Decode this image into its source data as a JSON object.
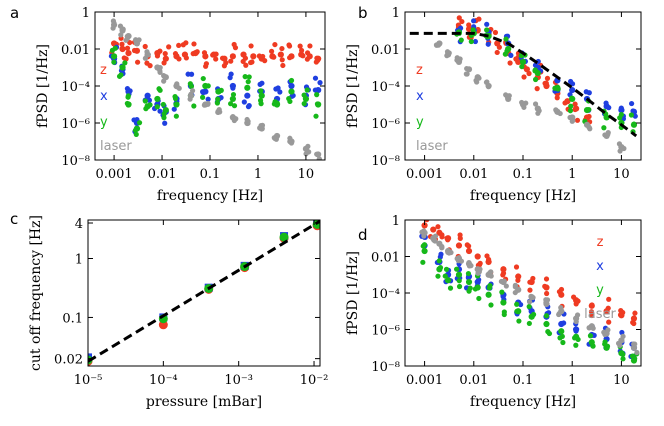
{
  "colors": {
    "z": "#ef3b22",
    "x": "#1f3fe0",
    "y": "#16b81a",
    "laser": "#999999",
    "fit": "#000000"
  },
  "chart_data": [
    {
      "id": "a",
      "panel_label": "a",
      "type": "scatter",
      "xlabel": "frequency [Hz]",
      "ylabel": "fPSD [1/Hz]",
      "xlim": [
        0.0004,
        25
      ],
      "ylim": [
        1e-08,
        1
      ],
      "xticks": [
        "0.001",
        "0.01",
        "0.1",
        "1",
        "10"
      ],
      "xtick_values": [
        0.001,
        0.01,
        0.1,
        1,
        10
      ],
      "yticks": [
        "1",
        "0.01",
        "10⁻⁴",
        "10⁻⁶",
        "10⁻⁸"
      ],
      "ytick_values": [
        1,
        0.01,
        0.0001,
        1e-06,
        1e-08
      ],
      "legend": [
        {
          "name": "z",
          "color": "#ef3b22"
        },
        {
          "name": "x",
          "color": "#1f3fe0"
        },
        {
          "name": "y",
          "color": "#16b81a"
        },
        {
          "name": "laser",
          "color": "#999999"
        }
      ],
      "series": [
        {
          "name": "z",
          "color": "#ef3b22",
          "x": [
            0.001,
            0.0015,
            0.002,
            0.003,
            0.005,
            0.008,
            0.012,
            0.02,
            0.03,
            0.05,
            0.08,
            0.12,
            0.2,
            0.3,
            0.5,
            0.8,
            1.2,
            2,
            3,
            5,
            8,
            12,
            18
          ],
          "y": [
            0.02,
            0.01,
            0.006,
            0.008,
            0.004,
            0.006,
            0.003,
            0.004,
            0.005,
            0.006,
            0.004,
            0.005,
            0.003,
            0.004,
            0.005,
            0.004,
            0.003,
            0.004,
            0.005,
            0.004,
            0.005,
            0.004,
            0.003
          ]
        },
        {
          "name": "x",
          "color": "#1f3fe0",
          "x": [
            0.001,
            0.0015,
            0.002,
            0.003,
            0.005,
            0.008,
            0.012,
            0.02,
            0.04,
            0.08,
            0.15,
            0.3,
            0.6,
            1.2,
            2.5,
            5,
            10,
            18
          ],
          "y": [
            0.003,
            0.0008,
            5e-05,
            1e-06,
            3e-05,
            1e-05,
            4e-06,
            2e-05,
            0.0001,
            5e-05,
            2e-05,
            0.0001,
            3e-05,
            5e-05,
            2e-05,
            0.0001,
            3e-05,
            6e-05
          ]
        },
        {
          "name": "y",
          "color": "#16b81a",
          "x": [
            0.001,
            0.0015,
            0.002,
            0.003,
            0.005,
            0.008,
            0.012,
            0.02,
            0.04,
            0.08,
            0.15,
            0.3,
            0.6,
            1.2,
            2.5,
            5,
            10,
            18
          ],
          "y": [
            0.004,
            0.001,
            1e-05,
            5e-07,
            8e-06,
            2e-05,
            5e-06,
            1e-05,
            3e-05,
            0.0001,
            5e-05,
            2e-05,
            8e-05,
            3e-05,
            1e-05,
            5e-05,
            2e-05,
            1e-05
          ]
        },
        {
          "name": "laser",
          "color": "#999999",
          "x": [
            0.001,
            0.0015,
            0.002,
            0.003,
            0.005,
            0.008,
            0.012,
            0.02,
            0.04,
            0.08,
            0.15,
            0.3,
            0.6,
            1.2,
            2.5,
            5,
            10,
            18
          ],
          "y": [
            0.2,
            0.1,
            0.05,
            0.02,
            0.005,
            0.001,
            0.0003,
            0.0001,
            3e-05,
            1e-05,
            4e-06,
            2e-06,
            1e-06,
            5e-07,
            2e-07,
            1e-07,
            4e-08,
            2e-08
          ]
        }
      ]
    },
    {
      "id": "b",
      "panel_label": "b",
      "type": "scatter",
      "xlabel": "frequency [Hz]",
      "ylabel": "fPSD [1/Hz]",
      "xlim": [
        0.0004,
        25
      ],
      "ylim": [
        1e-08,
        1
      ],
      "xticks": [
        "0.001",
        "0.01",
        "0.1",
        "1",
        "10"
      ],
      "xtick_values": [
        0.001,
        0.01,
        0.1,
        1,
        10
      ],
      "yticks": [
        "1",
        "0.01",
        "10⁻⁴",
        "10⁻⁶",
        "10⁻⁸"
      ],
      "ytick_values": [
        1,
        0.01,
        0.0001,
        1e-06,
        1e-08
      ],
      "legend": [
        {
          "name": "z",
          "color": "#ef3b22"
        },
        {
          "name": "x",
          "color": "#1f3fe0"
        },
        {
          "name": "y",
          "color": "#16b81a"
        },
        {
          "name": "laser",
          "color": "#999999"
        }
      ],
      "series": [
        {
          "name": "z",
          "color": "#ef3b22",
          "x": [
            0.005,
            0.008,
            0.012,
            0.02,
            0.03,
            0.05,
            0.08,
            0.12,
            0.2,
            0.3,
            0.5,
            0.8,
            1.2,
            2
          ],
          "y": [
            0.15,
            0.12,
            0.1,
            0.06,
            0.02,
            0.006,
            0.002,
            0.0008,
            0.0003,
            0.0001,
            4e-05,
            1.5e-05,
            6e-06,
            2e-06
          ]
        },
        {
          "name": "x",
          "color": "#1f3fe0",
          "x": [
            0.005,
            0.01,
            0.02,
            0.05,
            0.1,
            0.2,
            0.5,
            1,
            2,
            5,
            10,
            18
          ],
          "y": [
            0.1,
            0.1,
            0.08,
            0.02,
            0.005,
            0.001,
            0.0002,
            6e-05,
            2e-05,
            8e-06,
            5e-06,
            4e-06
          ]
        },
        {
          "name": "y",
          "color": "#16b81a",
          "x": [
            0.005,
            0.01,
            0.02,
            0.05,
            0.1,
            0.2,
            0.5,
            1,
            2,
            5,
            10,
            18
          ],
          "y": [
            0.08,
            0.07,
            0.05,
            0.01,
            0.002,
            0.0005,
            8e-05,
            2e-05,
            5e-06,
            2e-06,
            1e-06,
            8e-07
          ]
        },
        {
          "name": "laser",
          "color": "#999999",
          "x": [
            0.002,
            0.003,
            0.005,
            0.008,
            0.012,
            0.02,
            0.05,
            0.1,
            0.2,
            0.5,
            1,
            2,
            5,
            10
          ],
          "y": [
            0.02,
            0.005,
            0.002,
            0.0008,
            0.0003,
            0.0001,
            2e-05,
            1e-05,
            6e-06,
            4e-06,
            2e-06,
            8e-07,
            2e-07,
            5e-08
          ]
        },
        {
          "name": "fit",
          "kind": "dashed-line",
          "color": "#000000",
          "x": [
            0.0005,
            0.01,
            0.02,
            0.05,
            0.1,
            0.2,
            0.5,
            1,
            2,
            5,
            10,
            20
          ],
          "y": [
            0.07,
            0.07,
            0.05,
            0.02,
            0.006,
            0.0017,
            0.0003,
            8e-05,
            2e-05,
            3e-06,
            8e-07,
            2e-07
          ]
        }
      ]
    },
    {
      "id": "c",
      "panel_label": "c",
      "type": "scatter",
      "xlabel": "pressure [mBar]",
      "ylabel": "cut off frequency [Hz]",
      "xlim": [
        1e-05,
        0.012
      ],
      "ylim": [
        0.015,
        4.5
      ],
      "xticks": [
        "10⁻⁵",
        "10⁻⁴",
        "10⁻³",
        "10⁻²"
      ],
      "xtick_values": [
        1e-05,
        0.0001,
        0.001,
        0.01
      ],
      "yticks": [
        "4",
        "1",
        "0.1",
        "0.02"
      ],
      "ytick_values": [
        4,
        1,
        0.1,
        0.02
      ],
      "series": [
        {
          "name": "z",
          "color": "#ef3b22",
          "x": [
            1e-05,
            0.0001,
            0.0004,
            0.0012,
            0.004,
            0.011
          ],
          "y": [
            0.018,
            0.075,
            0.3,
            0.7,
            2.2,
            3.6
          ]
        },
        {
          "name": "x",
          "color": "#1f3fe0",
          "x": [
            1e-05,
            0.0001,
            0.0004,
            0.0012,
            0.004,
            0.011
          ],
          "y": [
            0.021,
            0.1,
            0.32,
            0.75,
            2.4,
            4.0
          ]
        },
        {
          "name": "y",
          "color": "#16b81a",
          "x": [
            1e-05,
            0.0001,
            0.0004,
            0.0012,
            0.004,
            0.011
          ],
          "y": [
            0.019,
            0.095,
            0.31,
            0.73,
            2.3,
            3.8
          ]
        },
        {
          "name": "fit",
          "kind": "dashed-line",
          "color": "#000000",
          "x": [
            1e-05,
            0.012
          ],
          "y": [
            0.018,
            4.3
          ]
        }
      ]
    },
    {
      "id": "d",
      "panel_label": "d",
      "type": "scatter",
      "xlabel": "frequency [Hz]",
      "ylabel": "fPSD [1/Hz]",
      "xlim": [
        0.0004,
        25
      ],
      "ylim": [
        1e-08,
        1
      ],
      "xticks": [
        "0.001",
        "0.01",
        "0.1",
        "1",
        "10"
      ],
      "xtick_values": [
        0.001,
        0.01,
        0.1,
        1,
        10
      ],
      "yticks": [
        "1",
        "0.01",
        "10⁻⁴",
        "10⁻⁶",
        "10⁻⁸"
      ],
      "ytick_values": [
        1,
        0.01,
        0.0001,
        1e-06,
        1e-08
      ],
      "legend": [
        {
          "name": "z",
          "color": "#ef3b22"
        },
        {
          "name": "x",
          "color": "#1f3fe0"
        },
        {
          "name": "y",
          "color": "#16b81a"
        },
        {
          "name": "laser",
          "color": "#999999"
        }
      ],
      "series": [
        {
          "name": "z",
          "color": "#ef3b22",
          "x": [
            0.001,
            0.0015,
            0.002,
            0.003,
            0.005,
            0.008,
            0.012,
            0.02,
            0.04,
            0.08,
            0.15,
            0.3,
            0.6,
            1.2,
            2.5,
            5,
            10,
            18
          ],
          "y": [
            0.5,
            0.3,
            0.2,
            0.1,
            0.04,
            0.02,
            0.01,
            0.005,
            0.002,
            0.0008,
            0.0004,
            0.0002,
            8e-05,
            4e-05,
            2e-05,
            1e-05,
            6e-06,
            4e-06
          ]
        },
        {
          "name": "x",
          "color": "#1f3fe0",
          "x": [
            0.001,
            0.002,
            0.003,
            0.005,
            0.008,
            0.012,
            0.02,
            0.04,
            0.08,
            0.15,
            0.3,
            0.6,
            1.2,
            2.5,
            5,
            10,
            18
          ],
          "y": [
            0.04,
            0.005,
            0.001,
            0.002,
            0.0008,
            0.0004,
            0.0002,
            8e-05,
            3e-05,
            1e-05,
            5e-06,
            2e-06,
            1e-06,
            5e-07,
            3e-07,
            2e-07,
            1e-07
          ]
        },
        {
          "name": "y",
          "color": "#16b81a",
          "x": [
            0.001,
            0.002,
            0.003,
            0.005,
            0.008,
            0.012,
            0.02,
            0.04,
            0.08,
            0.15,
            0.3,
            0.6,
            1.2,
            2.5,
            5,
            10,
            18
          ],
          "y": [
            0.02,
            0.002,
            0.0005,
            0.001,
            0.0004,
            0.0002,
            8e-05,
            3e-05,
            1e-05,
            5e-06,
            2e-06,
            8e-07,
            4e-07,
            2e-07,
            1e-07,
            5e-08,
            2e-08
          ]
        },
        {
          "name": "laser",
          "color": "#999999",
          "x": [
            0.001,
            0.0015,
            0.002,
            0.003,
            0.005,
            0.008,
            0.012,
            0.02,
            0.04,
            0.08,
            0.15,
            0.3,
            0.6,
            1.2,
            2.5,
            5,
            10,
            18
          ],
          "y": [
            0.2,
            0.1,
            0.05,
            0.02,
            0.008,
            0.004,
            0.002,
            0.001,
            0.0004,
            0.00015,
            6e-05,
            2.5e-05,
            1e-05,
            4e-06,
            1.5e-06,
            6e-07,
            2.5e-07,
            1e-07
          ]
        }
      ]
    }
  ]
}
